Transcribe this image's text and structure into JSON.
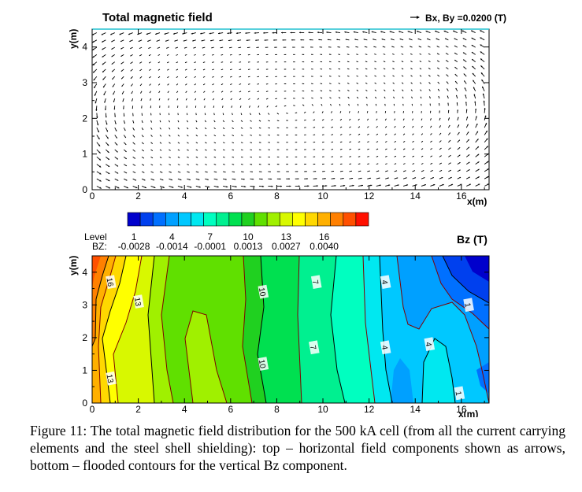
{
  "chart_data": [
    {
      "type": "vector-field",
      "title": "Total magnetic field",
      "legend": "Bx, By =0.0200 (T)",
      "xlabel": "x(m)",
      "ylabel": "y(m)",
      "xlim": [
        0,
        17.2
      ],
      "ylim": [
        0,
        4.5
      ],
      "xticks": [
        "0",
        "2",
        "4",
        "6",
        "8",
        "10",
        "12",
        "14",
        "16"
      ],
      "yticks": [
        "0",
        "1",
        "2",
        "3",
        "4"
      ],
      "reference_vector": 0.02,
      "field_pattern": "circulating field around cell; strongest near top and bottom edges, weak in center"
    },
    {
      "type": "contour",
      "title": "Bz (T)",
      "xlabel": "x(m)",
      "ylabel": "y(m)",
      "xlim": [
        0,
        17.2
      ],
      "ylim": [
        0,
        4.5
      ],
      "xticks": [
        "0",
        "2",
        "4",
        "6",
        "8",
        "10",
        "12",
        "14",
        "16"
      ],
      "yticks": [
        "0",
        "1",
        "2",
        "3",
        "4"
      ],
      "colorbar": {
        "levels": 19,
        "colors": [
          "#0000cc",
          "#0040ee",
          "#0070ff",
          "#00a0ff",
          "#00c8ff",
          "#00e8f0",
          "#00ffc0",
          "#00f090",
          "#00e050",
          "#20d020",
          "#60e000",
          "#a0f000",
          "#d8f800",
          "#ffff00",
          "#ffd800",
          "#ffb000",
          "#ff8000",
          "#ff5000",
          "#ff1000"
        ],
        "level_label": "Level",
        "value_label": "BZ:",
        "level_ticks": [
          "1",
          "4",
          "7",
          "10",
          "13",
          "16"
        ],
        "value_ticks": [
          "-0.0028",
          "-0.0014",
          "-0.0001",
          "0.0013",
          "0.0027",
          "0.0040"
        ]
      },
      "contour_labels": [
        {
          "text": "16",
          "x": 0.8,
          "y": 3.7
        },
        {
          "text": "13",
          "x": 2.0,
          "y": 3.1
        },
        {
          "text": "13",
          "x": 0.8,
          "y": 0.75
        },
        {
          "text": "10",
          "x": 7.4,
          "y": 3.4
        },
        {
          "text": "10",
          "x": 7.4,
          "y": 1.2
        },
        {
          "text": "7",
          "x": 9.7,
          "y": 3.7
        },
        {
          "text": "7",
          "x": 9.6,
          "y": 1.7
        },
        {
          "text": "4",
          "x": 12.7,
          "y": 3.7
        },
        {
          "text": "4",
          "x": 12.7,
          "y": 1.7
        },
        {
          "text": "4",
          "x": 14.6,
          "y": 1.8
        },
        {
          "text": "1",
          "x": 16.3,
          "y": 3.0
        },
        {
          "text": "1",
          "x": 15.9,
          "y": 0.3
        }
      ]
    }
  ],
  "caption": {
    "label": "Figure 11:",
    "text": "The total magnetic field distribution for the 500 kA cell (from all the current carrying elements and the steel shell shielding): top – horizontal field components shown as arrows, bottom – flooded contours for the vertical Bz component."
  }
}
